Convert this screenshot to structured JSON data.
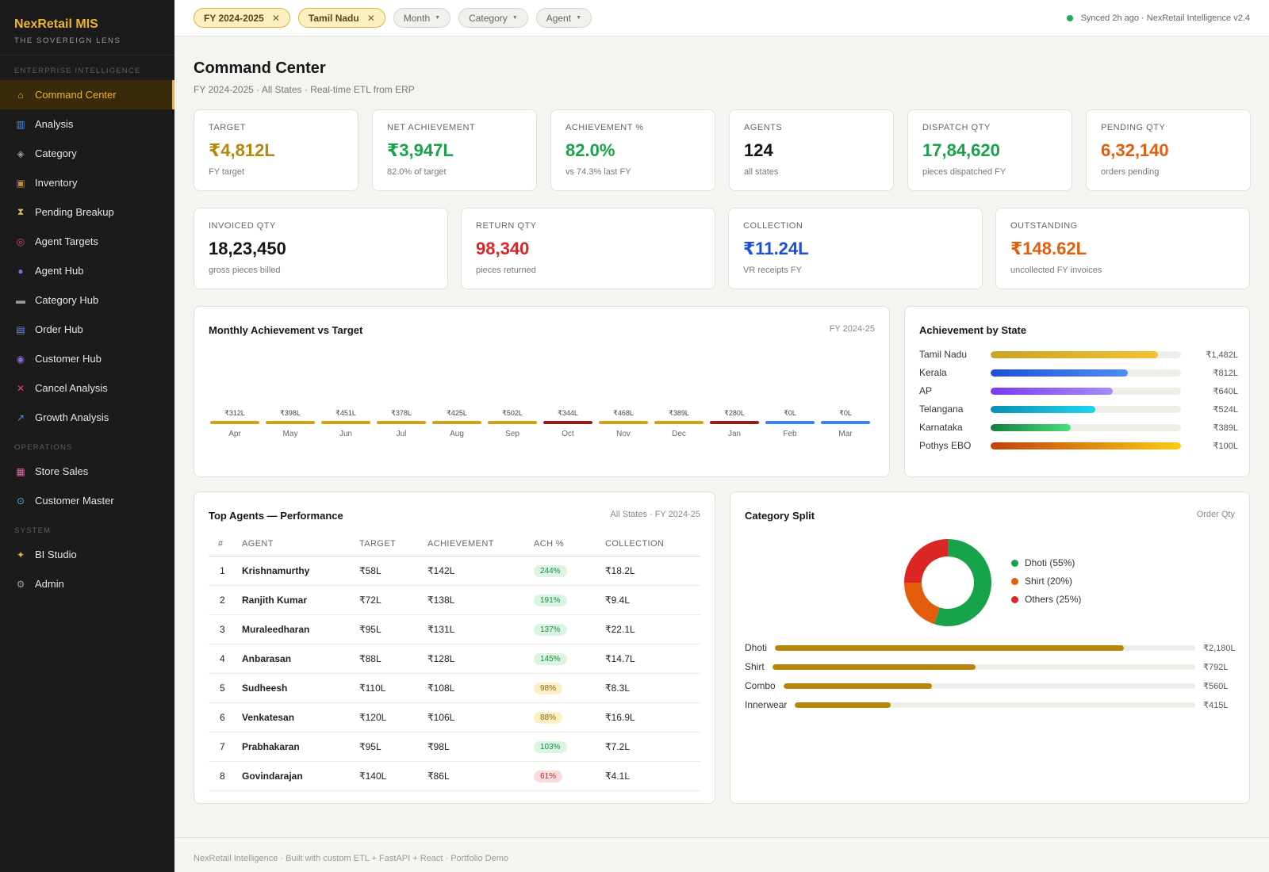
{
  "brand": {
    "title": "NexRetail MIS",
    "subtitle": "THE SOVEREIGN LENS"
  },
  "sidebar": {
    "sections": [
      {
        "label": "ENTERPRISE INTELLIGENCE",
        "items": [
          {
            "label": "Command Center",
            "icon": "home-icon",
            "active": true
          },
          {
            "label": "Analysis",
            "icon": "bar-chart-icon"
          },
          {
            "label": "Category",
            "icon": "tag-icon"
          },
          {
            "label": "Inventory",
            "icon": "box-icon"
          },
          {
            "label": "Pending Breakup",
            "icon": "hourglass-icon"
          },
          {
            "label": "Agent Targets",
            "icon": "target-icon"
          },
          {
            "label": "Agent Hub",
            "icon": "user-icon"
          },
          {
            "label": "Category Hub",
            "icon": "truck-icon"
          },
          {
            "label": "Order Hub",
            "icon": "cart-icon"
          },
          {
            "label": "Customer Hub",
            "icon": "users-icon"
          },
          {
            "label": "Cancel Analysis",
            "icon": "cross-icon"
          },
          {
            "label": "Growth Analysis",
            "icon": "trend-icon"
          }
        ]
      },
      {
        "label": "OPERATIONS",
        "items": [
          {
            "label": "Store Sales",
            "icon": "store-icon"
          },
          {
            "label": "Customer Master",
            "icon": "search-icon"
          }
        ]
      },
      {
        "label": "SYSTEM",
        "items": [
          {
            "label": "BI Studio",
            "icon": "sparkle-icon"
          },
          {
            "label": "Admin",
            "icon": "gear-icon"
          }
        ]
      }
    ]
  },
  "topbar": {
    "chips_active": [
      "FY 2024-2025",
      "Tamil Nadu"
    ],
    "chips_filter": [
      "Month",
      "Category",
      "Agent"
    ],
    "sync_text": "Synced 2h ago · NexRetail Intelligence v2.4"
  },
  "page": {
    "title": "Command Center",
    "subtitle": "FY 2024-2025 · All States · Real-time ETL from ERP"
  },
  "kpis_row1": [
    {
      "label": "TARGET",
      "value": "₹4,812L",
      "note": "FY target",
      "color": "#b8860b"
    },
    {
      "label": "NET ACHIEVEMENT",
      "value": "₹3,947L",
      "note": "82.0% of target",
      "color": "#16a34a"
    },
    {
      "label": "ACHIEVEMENT %",
      "value": "82.0%",
      "note": "vs 74.3% last FY",
      "color": "#16a34a"
    },
    {
      "label": "AGENTS",
      "value": "124",
      "note": "all states",
      "color": "#161616"
    },
    {
      "label": "DISPATCH QTY",
      "value": "17,84,620",
      "note": "pieces dispatched FY",
      "color": "#16a34a"
    },
    {
      "label": "PENDING QTY",
      "value": "6,32,140",
      "note": "orders pending",
      "color": "#e35d0c"
    }
  ],
  "kpis_row2": [
    {
      "label": "INVOICED QTY",
      "value": "18,23,450",
      "note": "gross pieces billed",
      "color": "#161616"
    },
    {
      "label": "RETURN QTY",
      "value": "98,340",
      "note": "pieces returned",
      "color": "#dc2626"
    },
    {
      "label": "COLLECTION",
      "value": "₹11.24L",
      "note": "VR receipts FY",
      "color": "#1d4ed8"
    },
    {
      "label": "OUTSTANDING",
      "value": "₹148.62L",
      "note": "uncollected FY invoices",
      "color": "#e35d0c"
    }
  ],
  "monthly": {
    "title": "Monthly Achievement vs Target",
    "tag": "FY 2024-25",
    "chart_data": {
      "type": "bar",
      "categories": [
        "Apr",
        "May",
        "Jun",
        "Jul",
        "Aug",
        "Sep",
        "Oct",
        "Nov",
        "Dec",
        "Jan",
        "Feb",
        "Mar"
      ],
      "values": [
        312,
        398,
        451,
        378,
        425,
        502,
        344,
        468,
        389,
        280,
        0,
        0
      ],
      "labels": [
        "₹312L",
        "₹398L",
        "₹451L",
        "₹378L",
        "₹425L",
        "₹502L",
        "₹344L",
        "₹468L",
        "₹389L",
        "₹280L",
        "₹0L",
        "₹0L"
      ],
      "colors": [
        "#d4a017",
        "#d4a017",
        "#d4a017",
        "#d4a017",
        "#d4a017",
        "#d4a017",
        "#9b1c1c",
        "#d4a017",
        "#d4a017",
        "#9b1c1c",
        "#3b82f6",
        "#3b82f6"
      ]
    }
  },
  "states": {
    "title": "Achievement by State",
    "chart_data": {
      "type": "bar",
      "categories": [
        "Tamil Nadu",
        "Kerala",
        "AP",
        "Telangana",
        "Karnataka",
        "Pothys EBO"
      ],
      "fractions": [
        0.88,
        0.72,
        0.64,
        0.55,
        0.42,
        1.0
      ],
      "labels": [
        "₹1,482L",
        "₹812L",
        "₹640L",
        "₹524L",
        "₹389L",
        "₹100L"
      ],
      "gradients": [
        [
          "#c9a227",
          "#f2c230"
        ],
        [
          "#1d4ed8",
          "#4f8df5"
        ],
        [
          "#7c3aed",
          "#a78bfa"
        ],
        [
          "#0891b2",
          "#22d3ee"
        ],
        [
          "#15803d",
          "#4ade80"
        ],
        [
          "#c2410c",
          "#facc15"
        ]
      ]
    }
  },
  "agents": {
    "title": "Top Agents — Performance",
    "tag": "All States · FY 2024-25",
    "columns": [
      "#",
      "AGENT",
      "TARGET",
      "ACHIEVEMENT",
      "ACH %",
      "COLLECTION"
    ],
    "rows": [
      {
        "rank": "1",
        "agent": "Krishnamurthy",
        "target": "₹58L",
        "ach": "₹142L",
        "pct": "244%",
        "level": "good",
        "coll": "₹18.2L"
      },
      {
        "rank": "2",
        "agent": "Ranjith Kumar",
        "target": "₹72L",
        "ach": "₹138L",
        "pct": "191%",
        "level": "good",
        "coll": "₹9.4L"
      },
      {
        "rank": "3",
        "agent": "Muraleedharan",
        "target": "₹95L",
        "ach": "₹131L",
        "pct": "137%",
        "level": "good",
        "coll": "₹22.1L"
      },
      {
        "rank": "4",
        "agent": "Anbarasan",
        "target": "₹88L",
        "ach": "₹128L",
        "pct": "145%",
        "level": "good",
        "coll": "₹14.7L"
      },
      {
        "rank": "5",
        "agent": "Sudheesh",
        "target": "₹110L",
        "ach": "₹108L",
        "pct": "98%",
        "level": "mid",
        "coll": "₹8.3L"
      },
      {
        "rank": "6",
        "agent": "Venkatesan",
        "target": "₹120L",
        "ach": "₹106L",
        "pct": "88%",
        "level": "mid",
        "coll": "₹16.9L"
      },
      {
        "rank": "7",
        "agent": "Prabhakaran",
        "target": "₹95L",
        "ach": "₹98L",
        "pct": "103%",
        "level": "good",
        "coll": "₹7.2L"
      },
      {
        "rank": "8",
        "agent": "Govindarajan",
        "target": "₹140L",
        "ach": "₹86L",
        "pct": "61%",
        "level": "bad",
        "coll": "₹4.1L"
      }
    ]
  },
  "category": {
    "title": "Category Split",
    "tag": "Order Qty",
    "chart_data": {
      "type": "pie",
      "slices": [
        {
          "name": "Dhoti",
          "value": 55,
          "label": "Dhoti (55%)",
          "color": "#16a34a"
        },
        {
          "name": "Shirt",
          "value": 20,
          "label": "Shirt (20%)",
          "color": "#e35d0c"
        },
        {
          "name": "Others",
          "value": 25,
          "label": "Others (25%)",
          "color": "#dc2626"
        }
      ]
    },
    "bars": [
      {
        "name": "Dhoti",
        "fraction": 0.83,
        "label": "₹2,180L"
      },
      {
        "name": "Shirt",
        "fraction": 0.48,
        "label": "₹792L"
      },
      {
        "name": "Combo",
        "fraction": 0.36,
        "label": "₹560L"
      },
      {
        "name": "Innerwear",
        "fraction": 0.24,
        "label": "₹415L"
      }
    ]
  },
  "footer": {
    "text": "NexRetail Intelligence · Built with custom ETL + FastAPI + React · Portfolio Demo"
  }
}
